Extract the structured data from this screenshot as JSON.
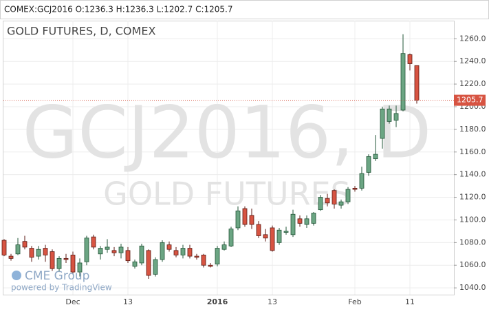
{
  "chart_data": {
    "type": "candlestick",
    "header": "COMEX:GCJ2016 O:1236.3 H:1236.3 L:1202.7 C:1205.7",
    "title": "GOLD FUTURES, D, COMEX",
    "watermark": "GCJ2016, D",
    "watermark_subtitle": "GOLD FUTURES",
    "logo": "CME Group",
    "credit": "powered by TradingView",
    "categories": [
      null,
      null,
      null,
      null,
      null,
      null,
      null,
      null,
      null,
      null,
      "Dec",
      null,
      null,
      null,
      null,
      null,
      null,
      null,
      "13",
      null,
      null,
      null,
      null,
      null,
      null,
      null,
      null,
      null,
      null,
      null,
      null,
      "2016",
      null,
      null,
      null,
      null,
      null,
      null,
      null,
      "13",
      null,
      null,
      null,
      null,
      null,
      null,
      null,
      null,
      null,
      null,
      null,
      "Feb",
      null,
      null,
      null,
      null,
      null,
      null,
      null,
      "11",
      null
    ],
    "open": [
      1082,
      1068,
      1070,
      1081,
      1075,
      1068,
      1075,
      1072,
      1057,
      1066,
      1069,
      1054,
      1063,
      1085,
      1070,
      1074,
      1073,
      1071,
      1073,
      1059,
      1062,
      1073,
      1052,
      1065,
      1078,
      1073,
      1069,
      1075,
      1068,
      1069,
      1060,
      1061,
      1074,
      1077,
      1093,
      1110,
      1104,
      1096,
      1087,
      1093,
      1080,
      1089,
      1087,
      1101,
      1096,
      1097,
      1109,
      1119,
      1126,
      1113,
      1116,
      1128,
      1128,
      1142,
      1154,
      1172,
      1187,
      1188,
      1197,
      1246,
      1236.3
    ],
    "high": [
      1083,
      1070,
      1084,
      1086,
      1077,
      1077,
      1078,
      1074,
      1068,
      1070,
      1072,
      1066,
      1086,
      1087,
      1077,
      1083,
      1076,
      1079,
      1076,
      1065,
      1079,
      1074,
      1067,
      1082,
      1081,
      1076,
      1078,
      1078,
      1070,
      1070,
      1062,
      1077,
      1081,
      1094,
      1112,
      1112,
      1110,
      1099,
      1092,
      1095,
      1093,
      1094,
      1109,
      1104,
      1104,
      1107,
      1122,
      1123,
      1127,
      1118,
      1129,
      1130,
      1147,
      1158,
      1175,
      1200,
      1201,
      1201,
      1264,
      1247,
      1236.3
    ],
    "low": [
      1068,
      1064,
      1069,
      1074,
      1063,
      1065,
      1063,
      1055,
      1054,
      1062,
      1052,
      1050,
      1060,
      1074,
      1065,
      1071,
      1068,
      1066,
      1062,
      1057,
      1060,
      1048,
      1050,
      1063,
      1072,
      1067,
      1066,
      1066,
      1065,
      1058,
      1058,
      1059,
      1073,
      1076,
      1091,
      1094,
      1092,
      1084,
      1081,
      1072,
      1078,
      1087,
      1085,
      1094,
      1093,
      1095,
      1108,
      1112,
      1110,
      1110,
      1114,
      1125,
      1126,
      1139,
      1152,
      1163,
      1185,
      1182,
      1196,
      1232,
      1202.7
    ],
    "close": [
      1069,
      1066,
      1078,
      1076,
      1067,
      1074,
      1069,
      1057,
      1066,
      1065,
      1054,
      1062,
      1084,
      1076,
      1075,
      1076,
      1071,
      1076,
      1064,
      1063,
      1077,
      1051,
      1065,
      1080,
      1074,
      1069,
      1075,
      1068,
      1067,
      1060,
      1059,
      1075,
      1078,
      1092,
      1108,
      1096,
      1096,
      1086,
      1084,
      1073,
      1091,
      1090,
      1105,
      1097,
      1101,
      1106,
      1120,
      1115,
      1114,
      1116,
      1127,
      1127,
      1141,
      1156,
      1158,
      1198,
      1198,
      1194,
      1247,
      1238,
      1205.7
    ],
    "up_color": "#6ba583",
    "down_color": "#d75442",
    "last_price": 1205.7,
    "ylim": [
      1034,
      1276
    ],
    "yticks": [
      {
        "value": 1040,
        "label": "1040.0"
      },
      {
        "value": 1060,
        "label": "1060.0"
      },
      {
        "value": 1080,
        "label": "1080.0"
      },
      {
        "value": 1100,
        "label": "1100.0"
      },
      {
        "value": 1120,
        "label": "1120.0"
      },
      {
        "value": 1140,
        "label": "1140.0"
      },
      {
        "value": 1160,
        "label": "1160.0"
      },
      {
        "value": 1180,
        "label": "1180.0"
      },
      {
        "value": 1200,
        "label": "1200.0"
      },
      {
        "value": 1220,
        "label": "1220.0"
      },
      {
        "value": 1240,
        "label": "1240.0"
      },
      {
        "value": 1260,
        "label": "1260.0"
      }
    ],
    "grid": true
  }
}
